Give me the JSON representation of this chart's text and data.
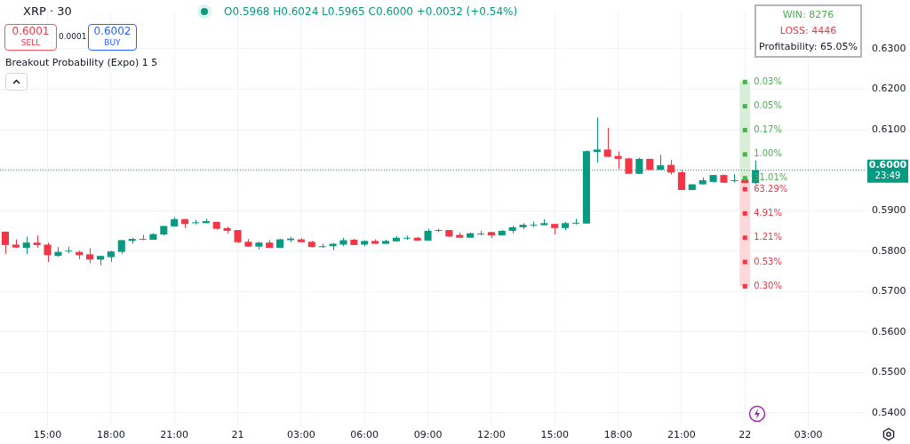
{
  "chart_data": {
    "type": "candlestick",
    "title": "XRP · 30",
    "subtitle": "O0.5968 H0.6024 L0.5965 C0.6000 +0.0032 (+0.54%)",
    "categories": [
      null,
      null,
      null,
      null,
      "15:00",
      null,
      null,
      null,
      null,
      null,
      "18:00",
      null,
      null,
      null,
      null,
      null,
      "21:00",
      null,
      null,
      null,
      null,
      null,
      "21",
      null,
      null,
      null,
      null,
      null,
      "03:00",
      null,
      null,
      null,
      null,
      null,
      "06:00",
      null,
      null,
      null,
      null,
      null,
      "09:00",
      null,
      null,
      null,
      null,
      null,
      "12:00",
      null,
      null,
      null,
      null,
      null,
      "15:00",
      null,
      null,
      null,
      null,
      null,
      "18:00",
      null,
      null,
      null,
      null,
      null,
      "21:00",
      null,
      null,
      null,
      null,
      null,
      "22",
      null,
      null,
      null,
      null,
      null,
      "03:00",
      null,
      null,
      null,
      null,
      null
    ],
    "ohlc": [
      [
        0.5848,
        0.5848,
        0.5793,
        0.5815
      ],
      [
        0.5816,
        0.5829,
        0.5808,
        0.5809
      ],
      [
        0.5808,
        0.5836,
        0.5793,
        0.5821
      ],
      [
        0.5821,
        0.5839,
        0.5809,
        0.5815
      ],
      [
        0.5816,
        0.5821,
        0.5773,
        0.579
      ],
      [
        0.5788,
        0.581,
        0.5786,
        0.5798
      ],
      [
        0.58,
        0.5811,
        0.5795,
        0.5801
      ],
      [
        0.5798,
        0.5801,
        0.578,
        0.579
      ],
      [
        0.5792,
        0.5807,
        0.577,
        0.5779
      ],
      [
        0.5779,
        0.5788,
        0.5765,
        0.5788
      ],
      [
        0.5785,
        0.5801,
        0.5773,
        0.5799
      ],
      [
        0.5798,
        0.5827,
        0.5793,
        0.5827
      ],
      [
        0.5825,
        0.5833,
        0.5818,
        0.583
      ],
      [
        0.583,
        0.584,
        0.5827,
        0.5829
      ],
      [
        0.5828,
        0.5844,
        0.5828,
        0.5842
      ],
      [
        0.5841,
        0.5862,
        0.5839,
        0.5862
      ],
      [
        0.5861,
        0.5884,
        0.5861,
        0.5879
      ],
      [
        0.5879,
        0.588,
        0.5857,
        0.5867
      ],
      [
        0.587,
        0.5877,
        0.5866,
        0.5871
      ],
      [
        0.5869,
        0.588,
        0.5869,
        0.5874
      ],
      [
        0.5872,
        0.5873,
        0.5853,
        0.5855
      ],
      [
        0.5857,
        0.586,
        0.5844,
        0.585
      ],
      [
        0.5852,
        0.5852,
        0.582,
        0.5822
      ],
      [
        0.5823,
        0.583,
        0.5811,
        0.5811
      ],
      [
        0.5811,
        0.5823,
        0.5804,
        0.5821
      ],
      [
        0.5821,
        0.5827,
        0.5808,
        0.5808
      ],
      [
        0.5808,
        0.583,
        0.5808,
        0.5829
      ],
      [
        0.5827,
        0.5835,
        0.5822,
        0.5831
      ],
      [
        0.5829,
        0.5832,
        0.5822,
        0.5822
      ],
      [
        0.5823,
        0.5825,
        0.5809,
        0.581
      ],
      [
        0.5811,
        0.5818,
        0.5808,
        0.5812
      ],
      [
        0.5812,
        0.582,
        0.5802,
        0.5818
      ],
      [
        0.5816,
        0.5833,
        0.5812,
        0.5827
      ],
      [
        0.5828,
        0.583,
        0.5815,
        0.5815
      ],
      [
        0.5816,
        0.5827,
        0.5812,
        0.5825
      ],
      [
        0.5825,
        0.5829,
        0.5818,
        0.5818
      ],
      [
        0.5818,
        0.5828,
        0.5818,
        0.5825
      ],
      [
        0.5824,
        0.5837,
        0.5824,
        0.5833
      ],
      [
        0.5832,
        0.5838,
        0.5828,
        0.5833
      ],
      [
        0.5833,
        0.5835,
        0.5826,
        0.5826
      ],
      [
        0.5826,
        0.5855,
        0.5826,
        0.585
      ],
      [
        0.5851,
        0.5855,
        0.5847,
        0.5852
      ],
      [
        0.5852,
        0.5852,
        0.5834,
        0.5836
      ],
      [
        0.584,
        0.5846,
        0.5833,
        0.5833
      ],
      [
        0.5833,
        0.5846,
        0.5833,
        0.5844
      ],
      [
        0.5842,
        0.585,
        0.5839,
        0.5843
      ],
      [
        0.5847,
        0.5847,
        0.5832,
        0.5839
      ],
      [
        0.5839,
        0.5852,
        0.5839,
        0.585
      ],
      [
        0.585,
        0.5862,
        0.5844,
        0.5859
      ],
      [
        0.5859,
        0.5869,
        0.5854,
        0.5865
      ],
      [
        0.5864,
        0.5873,
        0.5859,
        0.5865
      ],
      [
        0.5864,
        0.5879,
        0.5864,
        0.5869
      ],
      [
        0.5867,
        0.5867,
        0.5841,
        0.5857
      ],
      [
        0.5857,
        0.5872,
        0.5852,
        0.5869
      ],
      [
        0.5869,
        0.588,
        0.5866,
        0.587
      ],
      [
        0.5868,
        0.6049,
        0.5868,
        0.6047
      ],
      [
        0.6045,
        0.613,
        0.6019,
        0.6051
      ],
      [
        0.6051,
        0.6105,
        0.6033,
        0.6033
      ],
      [
        0.6035,
        0.6046,
        0.6003,
        0.6028
      ],
      [
        0.6029,
        0.6031,
        0.5991,
        0.5991
      ],
      [
        0.5991,
        0.6031,
        0.5991,
        0.6028
      ],
      [
        0.6028,
        0.6028,
        0.6001,
        0.6001
      ],
      [
        0.6001,
        0.6038,
        0.6001,
        0.6012
      ],
      [
        0.6013,
        0.6025,
        0.5989,
        0.5994
      ],
      [
        0.5995,
        0.6,
        0.5951,
        0.5951
      ],
      [
        0.5951,
        0.5965,
        0.5951,
        0.5965
      ],
      [
        0.5965,
        0.5982,
        0.5965,
        0.5975
      ],
      [
        0.5971,
        0.5988,
        0.5969,
        0.5988
      ],
      [
        0.5988,
        0.5989,
        0.5969,
        0.5969
      ],
      [
        0.5974,
        0.599,
        0.5969,
        0.5975
      ],
      [
        0.5978,
        0.5978,
        0.5968,
        0.5968
      ],
      [
        0.5968,
        0.6024,
        0.5965,
        0.6
      ],
      null,
      null,
      null,
      null,
      null,
      null,
      null,
      null,
      null,
      null
    ],
    "colors": [
      "#f23645",
      "#f23645",
      "#089981",
      "#f23645",
      "#f23645",
      "#089981",
      "#089981",
      "#f23645",
      "#f23645",
      "#089981",
      "#089981",
      "#089981",
      "#089981",
      "#f23645",
      "#089981",
      "#089981",
      "#089981",
      "#f23645",
      "#089981",
      "#089981",
      "#f23645",
      "#f23645",
      "#f23645",
      "#f23645",
      "#089981",
      "#f23645",
      "#089981",
      "#089981",
      "#f23645",
      "#f23645",
      "#089981",
      "#089981",
      "#089981",
      "#f23645",
      "#089981",
      "#f23645",
      "#089981",
      "#089981",
      "#089981",
      "#f23645",
      "#089981",
      "#089981",
      "#f23645",
      "#f23645",
      "#089981",
      "#089981",
      "#f23645",
      "#089981",
      "#089981",
      "#089981",
      "#089981",
      "#089981",
      "#f23645",
      "#089981",
      "#089981",
      "#089981",
      "#089981",
      "#f23645",
      "#f23645",
      "#f23645",
      "#089981",
      "#f23645",
      "#089981",
      "#f23645",
      "#f23645",
      "#089981",
      "#089981",
      "#089981",
      "#f23645",
      "#089981",
      "#f23645",
      "#089981",
      null,
      null,
      null,
      null,
      null,
      null,
      null,
      null,
      null,
      null
    ],
    "series": [
      {
        "type": "bar",
        "color": "#d8eed9",
        "x": [
          "22"
        ],
        "base": [
          0.598
        ],
        "values": [
          0.0238
        ]
      },
      {
        "type": "bar",
        "color": "#fdd8da",
        "x": [
          "22"
        ],
        "base": [
          0.5713
        ],
        "values": [
          0.0259
        ]
      },
      {
        "type": "scatter",
        "color": "#4caf50",
        "marker": "square",
        "x": [
          "22",
          "22",
          "22",
          "22",
          "22"
        ],
        "values": [
          0.6218,
          0.6158,
          0.6099,
          0.6039,
          0.598
        ]
      },
      {
        "type": "scatter",
        "color": "#f23645",
        "marker": "square",
        "x": [
          "22",
          "22",
          "22",
          "22",
          "22"
        ],
        "values": [
          0.5953,
          0.5893,
          0.5833,
          0.5773,
          0.5713
        ]
      }
    ],
    "ylim": [
      0.5367,
      0.6393
    ],
    "yticks": [
      {
        "value": 0.54,
        "label": "0.5400"
      },
      {
        "value": 0.55,
        "label": "0.5500"
      },
      {
        "value": 0.56,
        "label": "0.5600"
      },
      {
        "value": 0.57,
        "label": "0.5700"
      },
      {
        "value": 0.58,
        "label": "0.5800"
      },
      {
        "value": 0.59,
        "label": "0.5900"
      },
      {
        "value": 0.6,
        "label": null
      },
      {
        "value": 0.61,
        "label": "0.6100"
      },
      {
        "value": 0.62,
        "label": "0.6200"
      },
      {
        "value": 0.63,
        "label": "0.6300"
      }
    ],
    "grid": true,
    "ref_lines": [
      {
        "axis": "y",
        "value": 0.6,
        "label": "0.6000 23:49",
        "color": "#089981",
        "line_style": "dotted"
      }
    ],
    "annotations": [
      "0.6001",
      "SELL",
      "0.0001",
      "0.6002",
      "BUY",
      "Breakout Probability (Expo) 1 5",
      "WIN: 8276",
      "LOSS: 4446",
      "Profitability: 65.05%",
      {
        "text": "0.03%",
        "x": "22",
        "y": 0.6218
      },
      {
        "text": "0.05%",
        "x": "22",
        "y": 0.6158
      },
      {
        "text": "0.17%",
        "x": "22",
        "y": 0.6099
      },
      {
        "text": "1.00%",
        "x": "22",
        "y": 0.6039
      },
      {
        "text": "31.01%",
        "x": "22",
        "y": 0.598
      },
      {
        "text": "63.29%",
        "x": "22",
        "y": 0.5953
      },
      {
        "text": "4.91%",
        "x": "22",
        "y": 0.5893
      },
      {
        "text": "1.21%",
        "x": "22",
        "y": 0.5833
      },
      {
        "text": "0.53%",
        "x": "22",
        "y": 0.5773
      },
      {
        "text": "0.30%",
        "x": "22",
        "y": 0.5713
      }
    ]
  }
}
